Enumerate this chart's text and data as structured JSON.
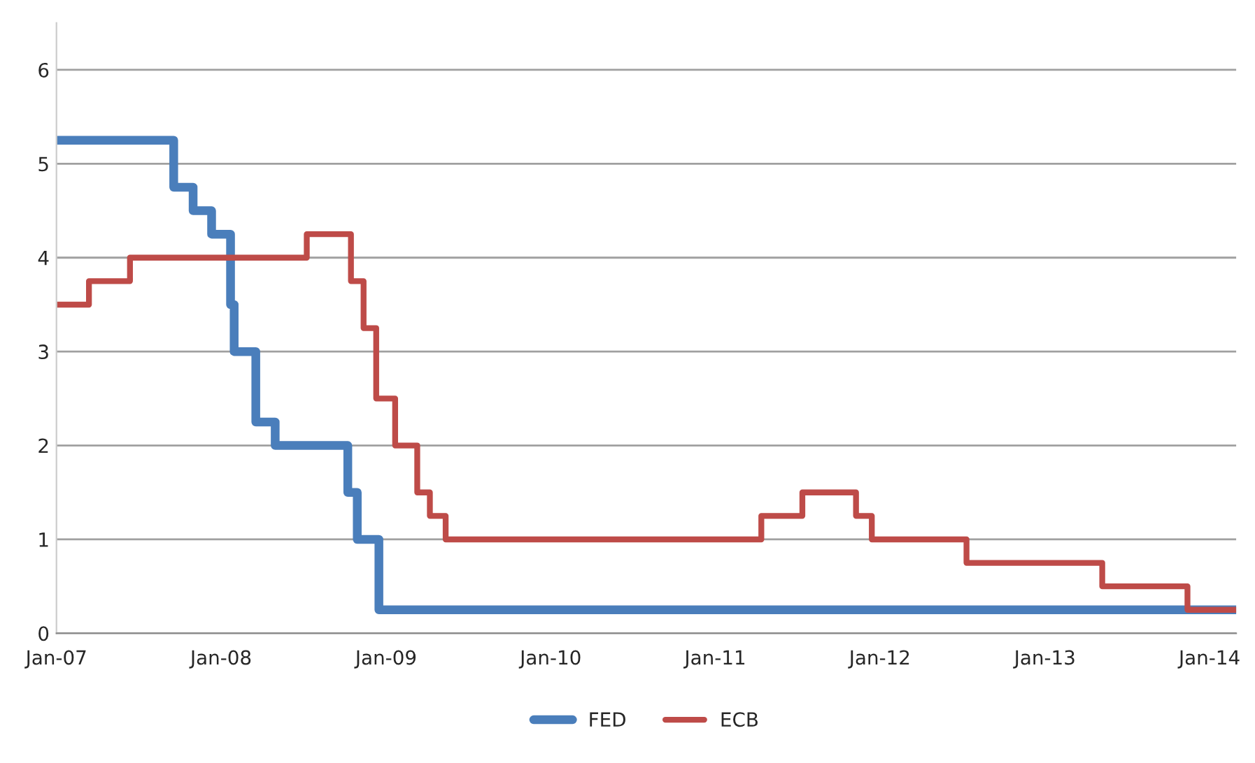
{
  "chart_data": {
    "type": "step",
    "xlim": [
      "2007-01-01",
      "2014-03-01"
    ],
    "xticks": [
      {
        "value": "2007-01-01",
        "label": "Jan-07"
      },
      {
        "value": "2008-01-01",
        "label": "Jan-08"
      },
      {
        "value": "2009-01-01",
        "label": "Jan-09"
      },
      {
        "value": "2010-01-01",
        "label": "Jan-10"
      },
      {
        "value": "2011-01-01",
        "label": "Jan-11"
      },
      {
        "value": "2012-01-01",
        "label": "Jan-12"
      },
      {
        "value": "2013-01-01",
        "label": "Jan-13"
      },
      {
        "value": "2014-01-01",
        "label": "Jan-14"
      }
    ],
    "ylim": [
      0,
      6.5
    ],
    "yticks": [
      0,
      1,
      2,
      3,
      4,
      5,
      6
    ],
    "grid": "y",
    "legend": "bottom",
    "line_style": "solid",
    "marker": "none",
    "series": [
      {
        "name": "FED",
        "color": "#4a7ebb",
        "x": [
          "2007-01-01",
          "2007-09-18",
          "2007-10-31",
          "2007-12-11",
          "2008-01-22",
          "2008-01-30",
          "2008-03-18",
          "2008-04-30",
          "2008-10-08",
          "2008-10-29",
          "2008-12-16",
          "2014-03-01"
        ],
        "values": [
          5.25,
          4.75,
          4.5,
          4.25,
          3.5,
          3.0,
          2.25,
          2.0,
          1.5,
          1.0,
          0.25,
          0.25
        ]
      },
      {
        "name": "ECB",
        "color": "#be4b48",
        "x": [
          "2007-01-01",
          "2007-03-14",
          "2007-06-13",
          "2008-07-09",
          "2008-10-15",
          "2008-11-12",
          "2008-12-10",
          "2009-01-21",
          "2009-03-11",
          "2009-04-08",
          "2009-05-13",
          "2011-04-13",
          "2011-07-13",
          "2011-11-09",
          "2011-12-14",
          "2012-07-11",
          "2013-05-08",
          "2013-11-13",
          "2014-03-01"
        ],
        "values": [
          3.5,
          3.75,
          4.0,
          4.25,
          3.75,
          3.25,
          2.5,
          2.0,
          1.5,
          1.25,
          1.0,
          1.25,
          1.5,
          1.25,
          1.0,
          0.75,
          0.5,
          0.25,
          0.25
        ]
      }
    ]
  }
}
